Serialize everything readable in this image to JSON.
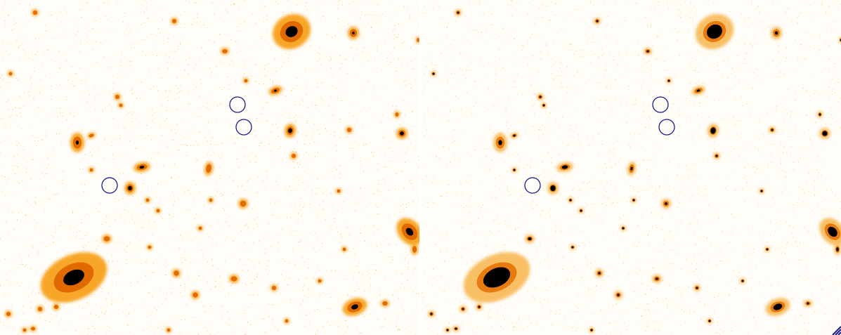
{
  "panels": [
    {
      "background": "#fffdf8",
      "halo_color": "#f7a21b",
      "core_color": "#e06a00",
      "nucleus_color": "#000000"
    },
    {
      "background": "#fffdf8",
      "halo_color": "#f7b040",
      "core_color": "#e87b10",
      "nucleus_color": "#000000"
    }
  ],
  "marker_color": "#1a1a8c",
  "marker_count_per_panel": 3
}
